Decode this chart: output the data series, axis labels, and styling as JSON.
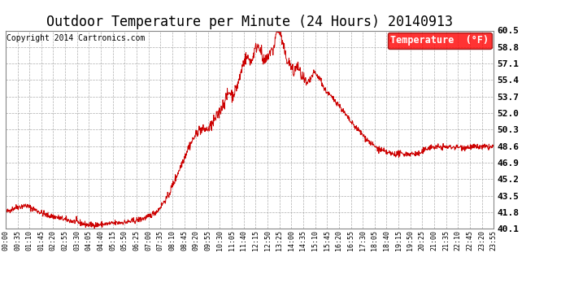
{
  "title": "Outdoor Temperature per Minute (24 Hours) 20140913",
  "copyright": "Copyright 2014 Cartronics.com",
  "legend_label": "Temperature  (°F)",
  "line_color": "#cc0000",
  "background_color": "#ffffff",
  "plot_bg_color": "#ffffff",
  "grid_color": "#999999",
  "ylim": [
    40.1,
    60.5
  ],
  "yticks": [
    40.1,
    41.8,
    43.5,
    45.2,
    46.9,
    48.6,
    50.3,
    52.0,
    53.7,
    55.4,
    57.1,
    58.8,
    60.5
  ],
  "xtick_labels": [
    "00:00",
    "00:35",
    "01:10",
    "01:45",
    "02:20",
    "02:55",
    "03:30",
    "04:05",
    "04:40",
    "05:15",
    "05:50",
    "06:25",
    "07:00",
    "07:35",
    "08:10",
    "08:45",
    "09:20",
    "09:55",
    "10:30",
    "11:05",
    "11:40",
    "12:15",
    "12:50",
    "13:25",
    "14:00",
    "14:35",
    "15:10",
    "15:45",
    "16:20",
    "16:55",
    "17:30",
    "18:05",
    "18:40",
    "19:15",
    "19:50",
    "20:25",
    "21:00",
    "21:35",
    "22:10",
    "22:45",
    "23:20",
    "23:55"
  ],
  "title_fontsize": 12,
  "copyright_fontsize": 7,
  "legend_fontsize": 8.5,
  "ytick_fontsize": 8,
  "xtick_fontsize": 6
}
